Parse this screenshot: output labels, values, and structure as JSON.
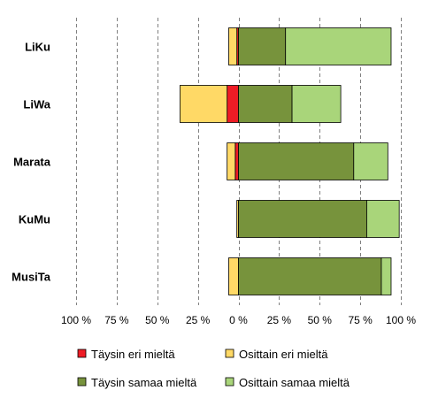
{
  "chart_data": {
    "type": "bar",
    "orientation": "horizontal",
    "stacking": "diverging",
    "categories": [
      "LiKu",
      "LiWa",
      "Marata",
      "KuMu",
      "MusiTa"
    ],
    "series": [
      {
        "name": "Täysin eri mieltä",
        "color": "#ee1c25",
        "side": "negative",
        "values": [
          1,
          7,
          2,
          0,
          0
        ]
      },
      {
        "name": "Osittain eri mieltä",
        "color": "#ffd966",
        "side": "negative",
        "values": [
          5,
          29,
          5,
          1,
          6
        ]
      },
      {
        "name": "Täysin samaa mieltä",
        "color": "#77933c",
        "side": "positive",
        "values": [
          29,
          33,
          71,
          79,
          88
        ]
      },
      {
        "name": "Osittain samaa mieltä",
        "color": "#a9d57a",
        "side": "positive",
        "values": [
          65,
          30,
          21,
          20,
          6
        ]
      }
    ],
    "xlim": [
      -100,
      100
    ],
    "ticks": [
      -100,
      -75,
      -50,
      -25,
      0,
      25,
      50,
      75,
      100
    ],
    "tick_labels": [
      "100 %",
      "75 %",
      "50 %",
      "25 %",
      "0 %",
      "25 %",
      "50 %",
      "75 %",
      "100 %"
    ],
    "grid": "vertical-dashed",
    "legend_position": "bottom",
    "title": "",
    "xlabel": "",
    "ylabel": ""
  }
}
